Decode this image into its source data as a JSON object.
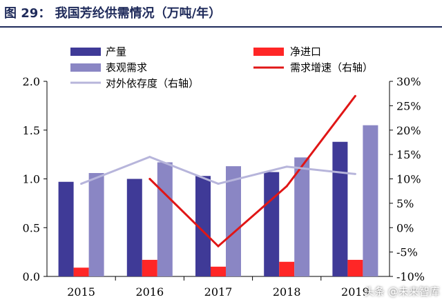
{
  "title": "图 29：  我国芳纶供需情况（万吨/年）",
  "watermark": "头条 @未来智库",
  "colors": {
    "title": "#1e2a5a",
    "production": "#3f3a97",
    "net_import": "#ff2626",
    "apparent_demand": "#8a86c4",
    "demand_growth": "#e01616",
    "dependence": "#b7b5db"
  },
  "chart_data": {
    "type": "bar",
    "categories": [
      "2015",
      "2016",
      "2017",
      "2018",
      "2019"
    ],
    "ylim": [
      0,
      2.0
    ],
    "yticks": [
      "0.0",
      "0.5",
      "1.0",
      "1.5",
      "2.0"
    ],
    "y2lim": [
      -10,
      30
    ],
    "y2ticks": [
      "-10%",
      "-5%",
      "0%",
      "5%",
      "10%",
      "15%",
      "20%",
      "25%",
      "30%"
    ],
    "legend": {
      "production": "产量",
      "apparent_demand": "表观需求",
      "dependence": "对外依存度（右轴）",
      "net_import": "净进口",
      "demand_growth": "需求增速（右轴）"
    },
    "series": [
      {
        "name": "产量",
        "key": "production",
        "kind": "bar",
        "values": [
          0.97,
          1.0,
          1.03,
          1.07,
          1.38
        ]
      },
      {
        "name": "净进口",
        "key": "net_import",
        "kind": "bar",
        "values": [
          0.09,
          0.17,
          0.1,
          0.15,
          0.17
        ]
      },
      {
        "name": "表观需求",
        "key": "apparent_demand",
        "kind": "bar",
        "values": [
          1.06,
          1.17,
          1.13,
          1.22,
          1.55
        ]
      },
      {
        "name": "需求增速（右轴）",
        "key": "demand_growth",
        "kind": "line",
        "axis": "right",
        "values": [
          null,
          10,
          -3.8,
          8.5,
          27
        ]
      },
      {
        "name": "对外依存度（右轴）",
        "key": "dependence",
        "kind": "line",
        "axis": "right",
        "values": [
          9,
          14.5,
          9,
          12.5,
          11
        ]
      }
    ]
  }
}
